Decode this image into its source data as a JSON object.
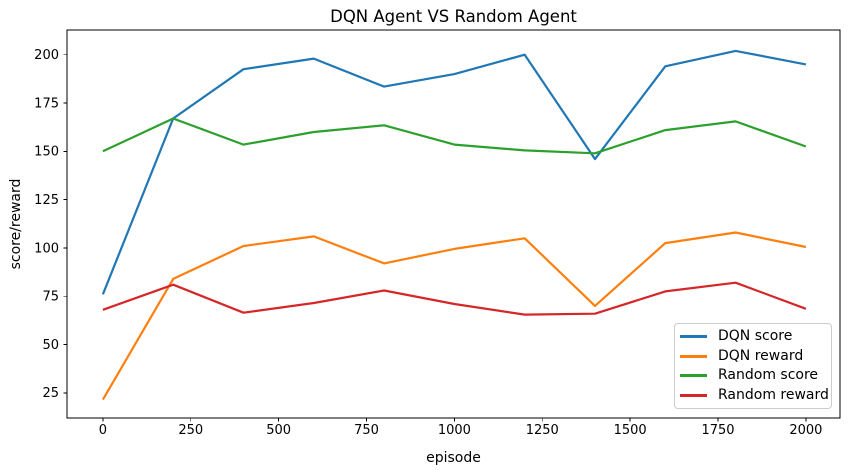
{
  "chart_data": {
    "type": "line",
    "title": "DQN Agent VS Random Agent",
    "xlabel": "episode",
    "ylabel": "score/reward",
    "x": [
      0,
      200,
      400,
      600,
      800,
      1000,
      1200,
      1400,
      1600,
      1800,
      2000
    ],
    "series": [
      {
        "name": "DQN score",
        "color": "#1f77b4",
        "values": [
          76,
          167,
          192.5,
          198,
          183.5,
          190,
          200,
          146,
          194,
          202,
          195
        ]
      },
      {
        "name": "DQN reward",
        "color": "#ff7f0e",
        "values": [
          21.5,
          84,
          101,
          106,
          92,
          99.5,
          105,
          70,
          102.5,
          108,
          100.5
        ]
      },
      {
        "name": "Random score",
        "color": "#2ca02c",
        "values": [
          150,
          167,
          153.5,
          160,
          163.5,
          153.5,
          150.5,
          149,
          161,
          165.5,
          152.5
        ]
      },
      {
        "name": "Random reward",
        "color": "#d62728",
        "values": [
          68,
          81,
          66.5,
          71.5,
          78,
          71,
          65.5,
          66,
          77.5,
          82,
          68.5
        ]
      }
    ],
    "xticks": [
      0,
      250,
      500,
      750,
      1000,
      1250,
      1500,
      1750,
      2000
    ],
    "yticks": [
      25,
      50,
      75,
      100,
      125,
      150,
      175,
      200
    ],
    "xlim": [
      -102,
      2097
    ],
    "ylim": [
      12,
      212.8
    ],
    "legend_position": "lower right",
    "grid": false
  },
  "colors": {
    "axis": "#000000",
    "legend_border": "#cccccc",
    "background": "#ffffff"
  }
}
